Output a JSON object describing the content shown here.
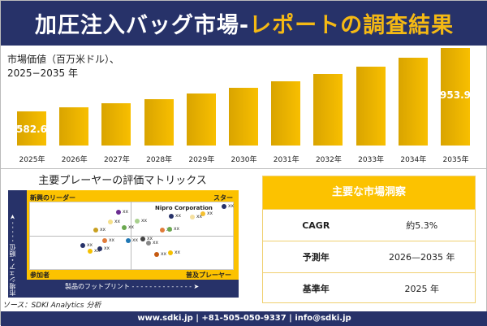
{
  "header": {
    "title_white": "加圧注入バッグ市場-",
    "title_yellow": "レポートの調査結果"
  },
  "chart_data": {
    "type": "bar",
    "subtitle_line1": "市場価値（百万米ドル）、",
    "subtitle_line2": "2025−2035 年",
    "categories": [
      "2025年",
      "2026年",
      "2027年",
      "2028年",
      "2029年",
      "2030年",
      "2031年",
      "2032年",
      "2033年",
      "2034年",
      "2035年"
    ],
    "values": [
      582.6,
      606,
      630,
      653,
      687,
      720,
      758,
      801,
      844,
      896,
      953.9
    ],
    "data_labels": {
      "0": "582.6",
      "10": "953.9"
    },
    "color": "#f8bf00"
  },
  "matrix": {
    "title": "主要プレーヤーの評価マトリックス",
    "quadrants": {
      "top_left": "新興のリーダー",
      "top_right": "スター",
      "bottom_left": "参加者",
      "bottom_right": "普及プレーヤー"
    },
    "y_axis": "市場シェア・順位",
    "x_axis": "製品のフットプリント",
    "highlight": "Nipro Corporation",
    "point_label": "xx"
  },
  "insights": {
    "title": "主要な市場洞察",
    "rows": [
      {
        "key": "CAGR",
        "value": "約5.3%"
      },
      {
        "key": "予測年",
        "value": "2026—2035 年"
      },
      {
        "key": "基準年",
        "value": "2025 年"
      }
    ]
  },
  "source": "ソース：SDKI Analytics 分析",
  "footer": "www.sdki.jp | +81-505-050-9337 | info@sdki.jp"
}
